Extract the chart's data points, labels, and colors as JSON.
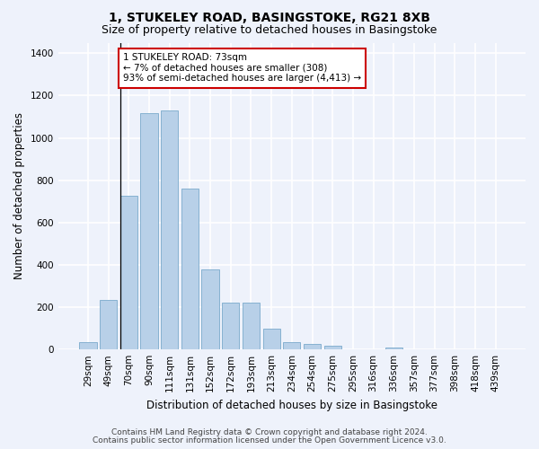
{
  "title1": "1, STUKELEY ROAD, BASINGSTOKE, RG21 8XB",
  "title2": "Size of property relative to detached houses in Basingstoke",
  "xlabel": "Distribution of detached houses by size in Basingstoke",
  "ylabel": "Number of detached properties",
  "categories": [
    "29sqm",
    "49sqm",
    "70sqm",
    "90sqm",
    "111sqm",
    "131sqm",
    "152sqm",
    "172sqm",
    "193sqm",
    "213sqm",
    "234sqm",
    "254sqm",
    "275sqm",
    "295sqm",
    "316sqm",
    "336sqm",
    "357sqm",
    "377sqm",
    "398sqm",
    "418sqm",
    "439sqm"
  ],
  "values": [
    35,
    235,
    725,
    1115,
    1130,
    760,
    380,
    220,
    220,
    100,
    35,
    25,
    18,
    0,
    0,
    10,
    0,
    0,
    0,
    0,
    0
  ],
  "bar_color": "#b8d0e8",
  "bar_edge_color": "#7aaacb",
  "vline_index": 2,
  "annotation_line1": "1 STUKELEY ROAD: 73sqm",
  "annotation_line2": "← 7% of detached houses are smaller (308)",
  "annotation_line3": "93% of semi-detached houses are larger (4,413) →",
  "annotation_box_facecolor": "#ffffff",
  "annotation_box_edgecolor": "#cc0000",
  "ylim": [
    0,
    1450
  ],
  "yticks": [
    0,
    200,
    400,
    600,
    800,
    1000,
    1200,
    1400
  ],
  "footer1": "Contains HM Land Registry data © Crown copyright and database right 2024.",
  "footer2": "Contains public sector information licensed under the Open Government Licence v3.0.",
  "bg_color": "#eef2fb",
  "plot_bg_color": "#eef2fb",
  "grid_color": "#ffffff",
  "title1_fontsize": 10,
  "title2_fontsize": 9,
  "xlabel_fontsize": 8.5,
  "ylabel_fontsize": 8.5,
  "tick_fontsize": 7.5,
  "annotation_fontsize": 7.5,
  "footer_fontsize": 6.5
}
